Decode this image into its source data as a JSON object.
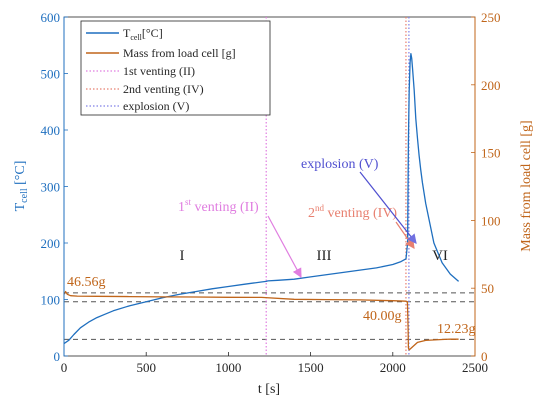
{
  "chart_data": {
    "type": "line",
    "xlabel": "t [s]",
    "ylabel_left": {
      "main": "T",
      "sub": "cell",
      "rest": " [°C]"
    },
    "ylabel_right": "Mass from load cell [g]",
    "xlim": [
      0,
      2500
    ],
    "ylim_left": [
      0,
      600
    ],
    "ylim_right": [
      0,
      250
    ],
    "xticks": [
      0,
      500,
      1000,
      1500,
      2000,
      2500
    ],
    "yticks_left": [
      0,
      100,
      200,
      300,
      400,
      500,
      600
    ],
    "yticks_right": [
      0,
      50,
      100,
      150,
      200,
      250
    ],
    "grid": false,
    "legend_position": "top-left",
    "colors": {
      "temperature": "#1f6fbf",
      "mass": "#c0651a",
      "first_venting": "#e07ee0",
      "second_venting": "#e88070",
      "explosion": "#8080e8",
      "reference": "#555555",
      "label_orange": "#c0651a"
    },
    "series": [
      {
        "name_main": "T",
        "name_sub": "cell",
        "name_rest": "[°C]",
        "axis": "left",
        "x": [
          0,
          30,
          60,
          100,
          150,
          200,
          250,
          300,
          400,
          500,
          600,
          700,
          800,
          900,
          1000,
          1100,
          1200,
          1230,
          1240,
          1300,
          1400,
          1500,
          1600,
          1700,
          1800,
          1900,
          2000,
          2050,
          2080,
          2090,
          2095,
          2100,
          2105,
          2110,
          2115,
          2120,
          2130,
          2140,
          2150,
          2160,
          2170,
          2180,
          2200,
          2250,
          2300,
          2350,
          2400
        ],
        "y": [
          22,
          28,
          38,
          50,
          60,
          68,
          74,
          80,
          89,
          96,
          103,
          109,
          114,
          119,
          123,
          127,
          131,
          132,
          133,
          134,
          136,
          140,
          144,
          148,
          152,
          156,
          162,
          167,
          172,
          200,
          380,
          470,
          520,
          535,
          527,
          510,
          470,
          420,
          385,
          355,
          330,
          307,
          270,
          200,
          165,
          145,
          132
        ]
      },
      {
        "name": "Mass from load cell [g]",
        "axis": "right",
        "x": [
          0,
          10,
          20,
          40,
          80,
          200,
          400,
          600,
          800,
          1000,
          1200,
          1400,
          1600,
          1800,
          2000,
          2080,
          2089,
          2090,
          2093,
          2095,
          2100,
          2150,
          2200,
          2300,
          2350,
          2400
        ],
        "y": [
          45.5,
          47.5,
          45.5,
          44.5,
          44.2,
          44.0,
          43.8,
          43.6,
          43.5,
          43.3,
          43.2,
          41.8,
          41.6,
          41.4,
          40.8,
          40.4,
          40.0,
          35,
          20,
          6,
          4.5,
          10,
          11.5,
          12.2,
          12.5,
          12.4
        ]
      }
    ],
    "vlines": [
      {
        "name": "1st venting (II)",
        "x": 1230,
        "style": "dotted",
        "color_key": "first_venting"
      },
      {
        "name": "2nd venting (IV)",
        "x": 2080,
        "style": "dotted",
        "color_key": "second_venting"
      },
      {
        "name": "explosion (V)",
        "x": 2098,
        "style": "dotted",
        "color_key": "explosion"
      }
    ],
    "hlines_right": [
      46.56,
      40.0,
      12.23
    ],
    "annotations": {
      "mass_labels": [
        "46.56g",
        "40.00g",
        "12.23g"
      ],
      "regions": [
        "I",
        "III",
        "VI"
      ],
      "first_venting": {
        "main": "1",
        "sup": "st",
        "rest": " venting (II)"
      },
      "second_venting": {
        "main": "2",
        "sup": "nd",
        "rest": " venting (IV)"
      },
      "explosion": "explosion (V)"
    },
    "legend": {
      "entry1": {
        "main": "T",
        "sub": "cell",
        "rest": "[°C]"
      },
      "entry2": "Mass from load cell [g]",
      "entry3": "1st venting (II)",
      "entry4": "2nd venting (IV)",
      "entry5": "explosion (V)"
    }
  }
}
